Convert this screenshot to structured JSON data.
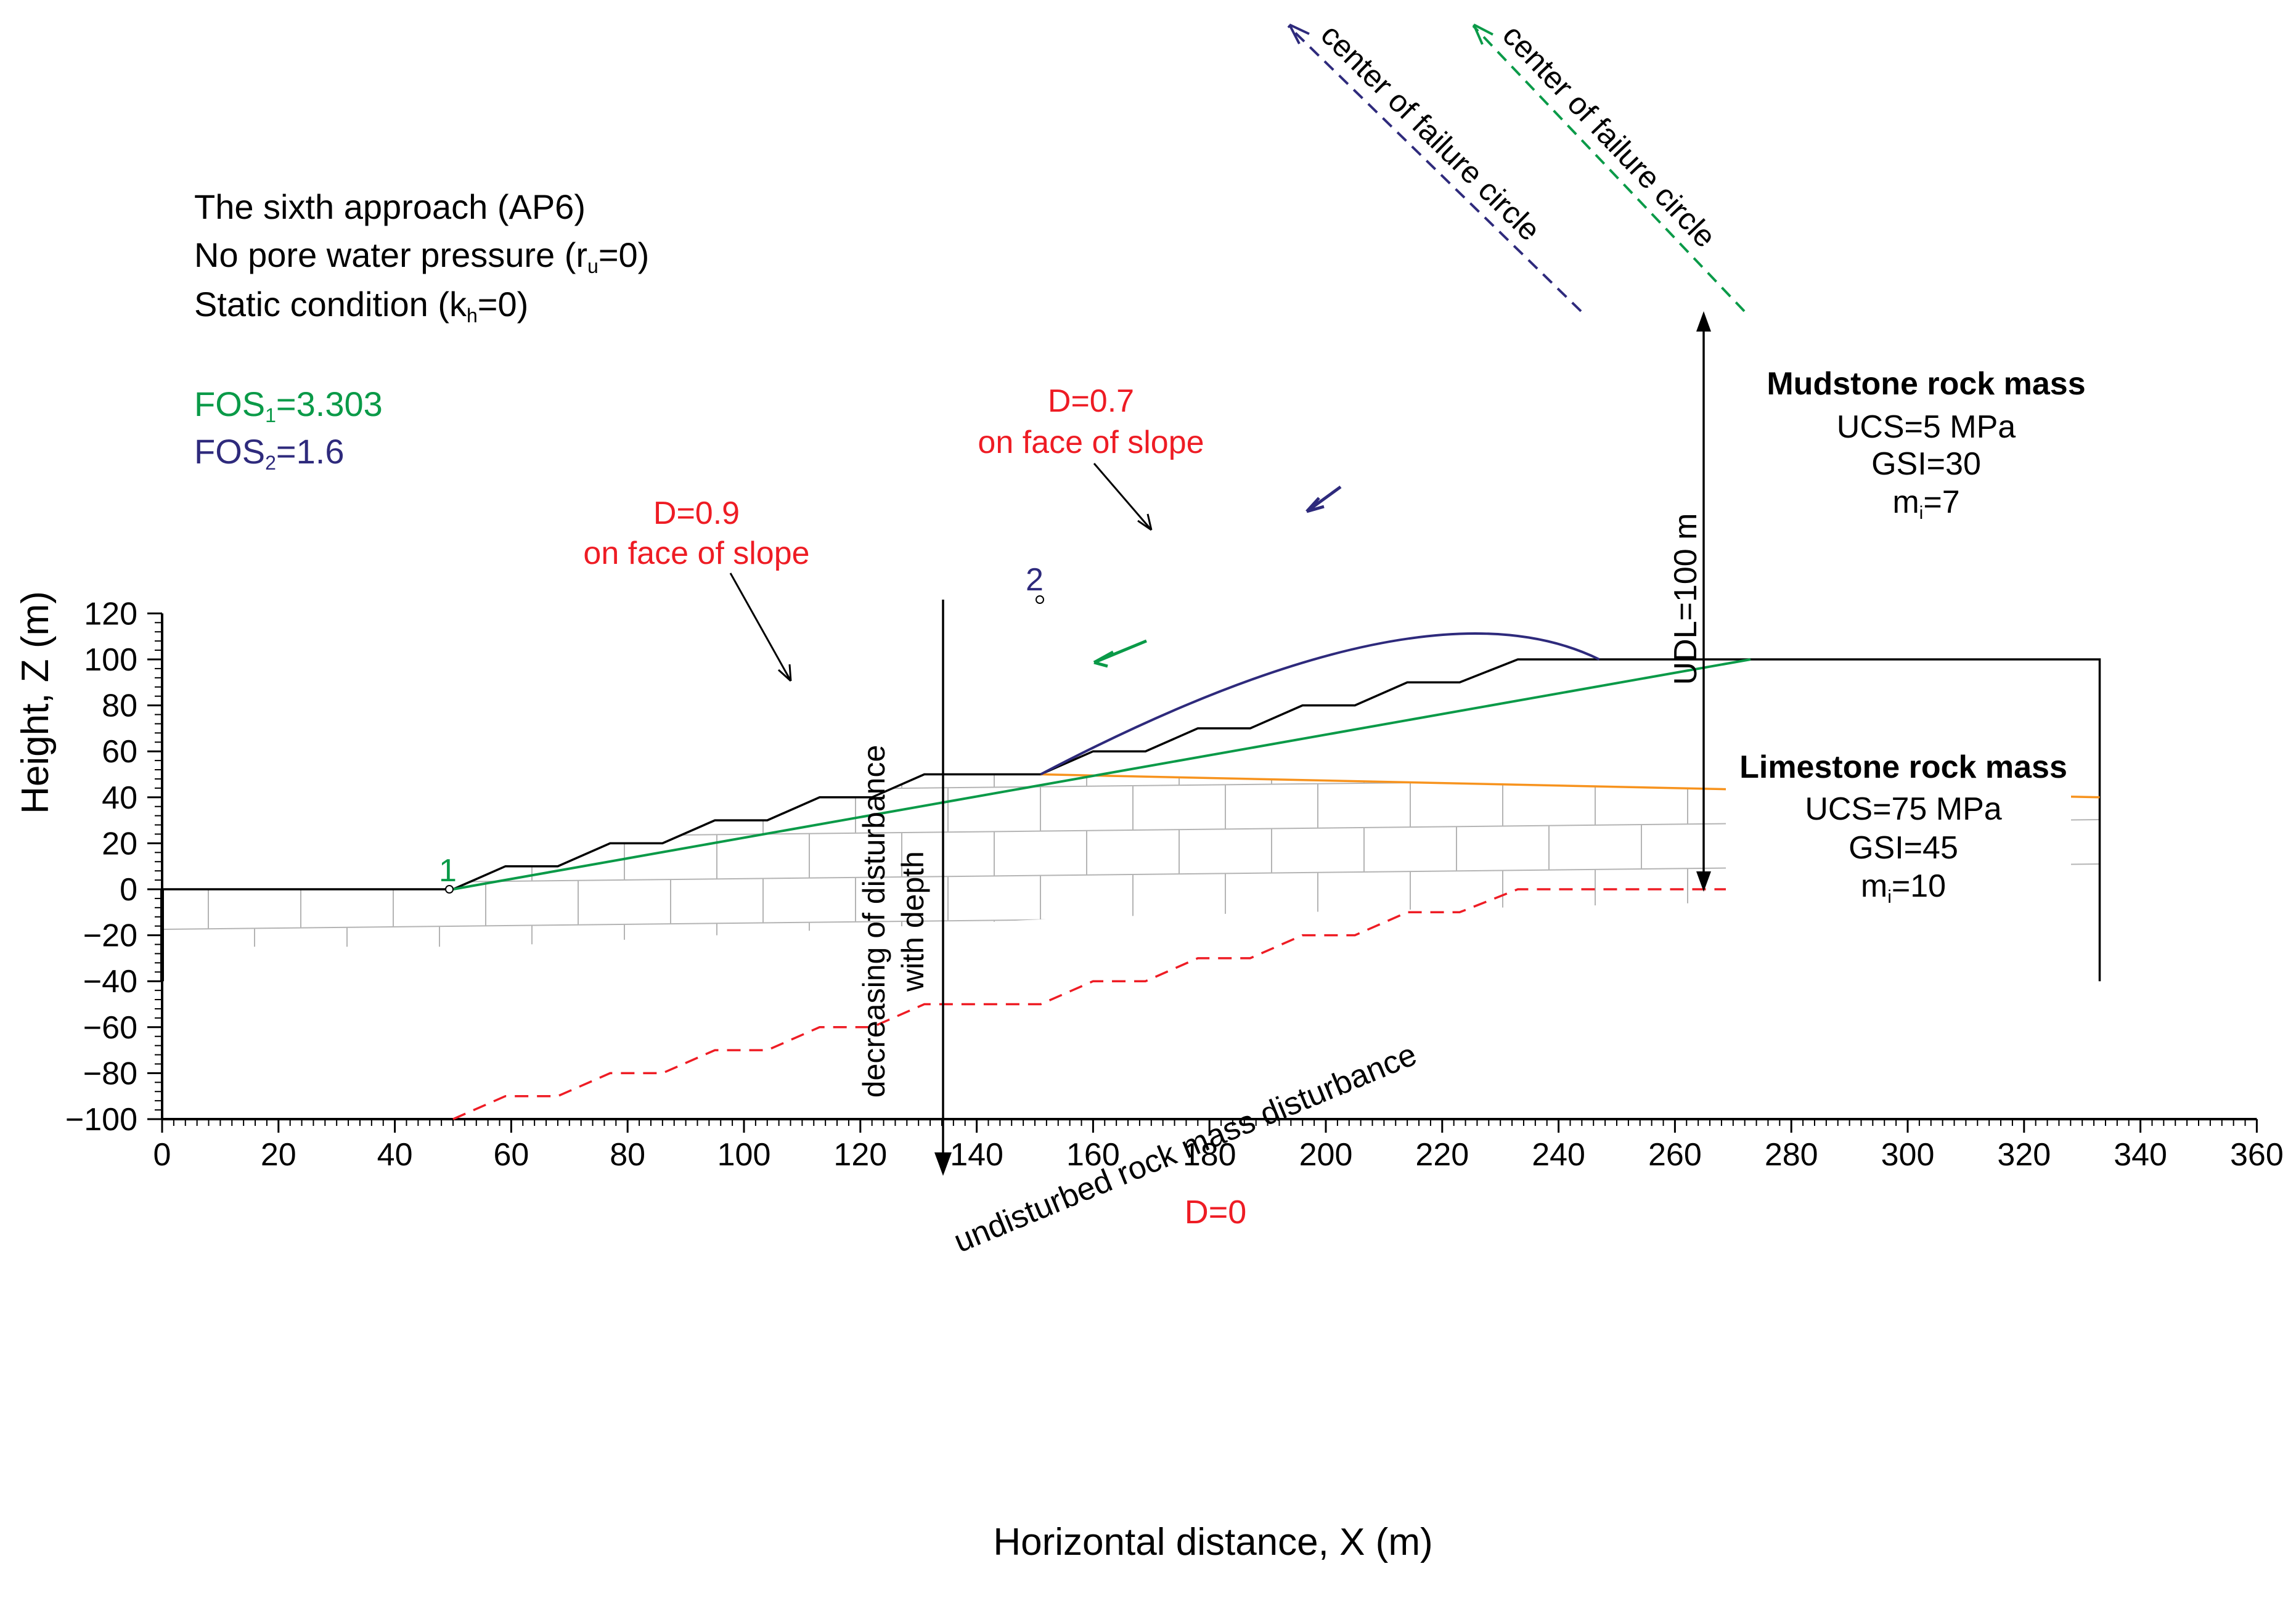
{
  "chart_data": {
    "type": "cross-section",
    "x_axis": {
      "label": "Horizontal distance, X (m)",
      "min": 0,
      "max": 360,
      "major_step": 20,
      "ticks": [
        "0",
        "20",
        "40",
        "60",
        "80",
        "100",
        "120",
        "140",
        "160",
        "180",
        "200",
        "220",
        "240",
        "260",
        "280",
        "300",
        "320",
        "340",
        "360"
      ]
    },
    "y_axis": {
      "label": "Height, Z (m)",
      "min": -100,
      "max": 120,
      "major_step": 20,
      "ticks": [
        "120",
        "100",
        "80",
        "60",
        "40",
        "20",
        "0",
        "−20",
        "−40",
        "−60",
        "−80",
        "−100"
      ]
    },
    "info_lines": [
      {
        "prefix": "The sixth approach (AP6)",
        "sub": "",
        "suffix": ""
      },
      {
        "prefix": "No pore water pressure (r",
        "sub": "u",
        "suffix": "=0)"
      },
      {
        "prefix": "Static condition (k",
        "sub": "h",
        "suffix": "=0)"
      }
    ],
    "fos": [
      {
        "prefix": "FOS",
        "sub": "1",
        "suffix": "=3.303",
        "color": "#0a9a48"
      },
      {
        "prefix": "FOS",
        "sub": "2",
        "suffix": "=1.6",
        "color": "#2e2a7c"
      }
    ],
    "slope_profile": [
      [
        0,
        0
      ],
      [
        50,
        0
      ],
      [
        59,
        10
      ],
      [
        68,
        10
      ],
      [
        77,
        20
      ],
      [
        86,
        20
      ],
      [
        95,
        30
      ],
      [
        104,
        30
      ],
      [
        113,
        40
      ],
      [
        122,
        40
      ],
      [
        131,
        50
      ],
      [
        151,
        50
      ],
      [
        160,
        60
      ],
      [
        169,
        60
      ],
      [
        178,
        70
      ],
      [
        187,
        70
      ],
      [
        196,
        80
      ],
      [
        205,
        80
      ],
      [
        214,
        90
      ],
      [
        223,
        90
      ],
      [
        233,
        100
      ],
      [
        333,
        100
      ],
      [
        333,
        -40
      ]
    ],
    "left_boundary": [
      [
        0,
        0
      ],
      [
        0,
        -40
      ]
    ],
    "layer_interface": [
      [
        151,
        50
      ],
      [
        333,
        40
      ]
    ],
    "undisturbed_boundary": [
      [
        50,
        -100
      ],
      [
        59,
        -90
      ],
      [
        68,
        -90
      ],
      [
        77,
        -80
      ],
      [
        86,
        -80
      ],
      [
        95,
        -70
      ],
      [
        104,
        -70
      ],
      [
        113,
        -60
      ],
      [
        122,
        -60
      ],
      [
        131,
        -50
      ],
      [
        151,
        -50
      ],
      [
        160,
        -40
      ],
      [
        169,
        -40
      ],
      [
        178,
        -30
      ],
      [
        187,
        -30
      ],
      [
        196,
        -20
      ],
      [
        205,
        -20
      ],
      [
        214,
        -10
      ],
      [
        223,
        -10
      ],
      [
        233,
        0
      ],
      [
        278,
        0
      ]
    ],
    "slip_surfaces": [
      {
        "id": "1",
        "color": "#0a9a48",
        "start": [
          50,
          0
        ],
        "end": [
          273,
          100
        ]
      },
      {
        "id": "2",
        "color": "#2e2a7c",
        "start": [
          151,
          50
        ],
        "end": [
          247,
          100
        ]
      }
    ],
    "labels": {
      "point1": "1",
      "point2": "2",
      "d09_line1": "D=0.9",
      "d09_line2": "on face of slope",
      "d07_line1": "D=0.7",
      "d07_line2": "on face of slope",
      "mudstone_title": "Mudstone rock mass",
      "mudstone_ucs": "UCS=5 MPa",
      "mudstone_gsi": "GSI=30",
      "mudstone_mi_prefix": "m",
      "mudstone_mi_sub": "i",
      "mudstone_mi_suffix": "=7",
      "limestone_title": "Limestone rock mass",
      "limestone_ucs": "UCS=75 MPa",
      "limestone_gsi": "GSI=45",
      "limestone_mi_prefix": "m",
      "limestone_mi_sub": "i",
      "limestone_mi_suffix": "=10",
      "udl": "UDL=100 m",
      "depth_line1": "decreasing of disturbance",
      "depth_line2": "with depth",
      "undisturbed": "undisturbed rock mass disturbance",
      "d0": "D=0",
      "center_circle_1": "center of failure circle",
      "center_circle_2": "center of failure circle"
    },
    "colors": {
      "green": "#0a9a48",
      "navy": "#2e2a7c",
      "red": "#ee1c24",
      "orange": "#f7931e",
      "hatch": "#b4b4b4"
    }
  }
}
